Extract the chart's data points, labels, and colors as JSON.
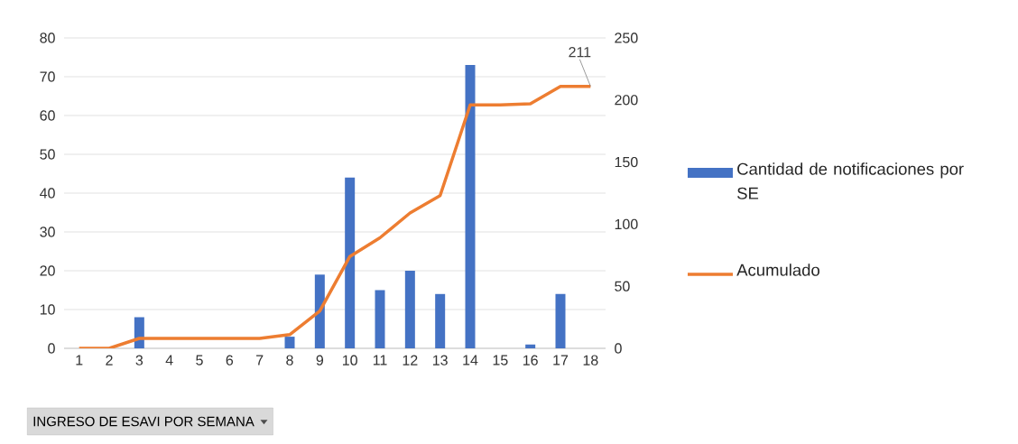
{
  "chart_data": {
    "type": "bar",
    "categories": [
      "1",
      "2",
      "3",
      "4",
      "5",
      "6",
      "7",
      "8",
      "9",
      "10",
      "11",
      "12",
      "13",
      "14",
      "15",
      "16",
      "17",
      "18"
    ],
    "series": [
      {
        "name": "Cantidad de notificaciones por SE",
        "color": "#4472c4",
        "values": [
          0,
          0,
          8,
          0,
          0,
          0,
          0,
          3,
          19,
          44,
          15,
          20,
          14,
          73,
          0,
          1,
          14,
          0
        ]
      },
      {
        "name": "Acumulado",
        "type": "line",
        "axis": "y2",
        "color": "#ed7d31",
        "marker": "none",
        "values": [
          0,
          0,
          8,
          8,
          8,
          8,
          8,
          11,
          30,
          74,
          89,
          109,
          123,
          196,
          196,
          197,
          211,
          211
        ]
      }
    ],
    "ylim": [
      0,
      80
    ],
    "yticks": [
      0,
      10,
      20,
      30,
      40,
      50,
      60,
      70,
      80
    ],
    "y2lim": [
      0,
      250
    ],
    "y2ticks": [
      0,
      50,
      100,
      150,
      200,
      250
    ],
    "grid": "y",
    "legend": "right",
    "annotations": [
      {
        "text": "211",
        "x": "18"
      },
      "INGRESO DE ESAVI POR SEMANA"
    ]
  }
}
